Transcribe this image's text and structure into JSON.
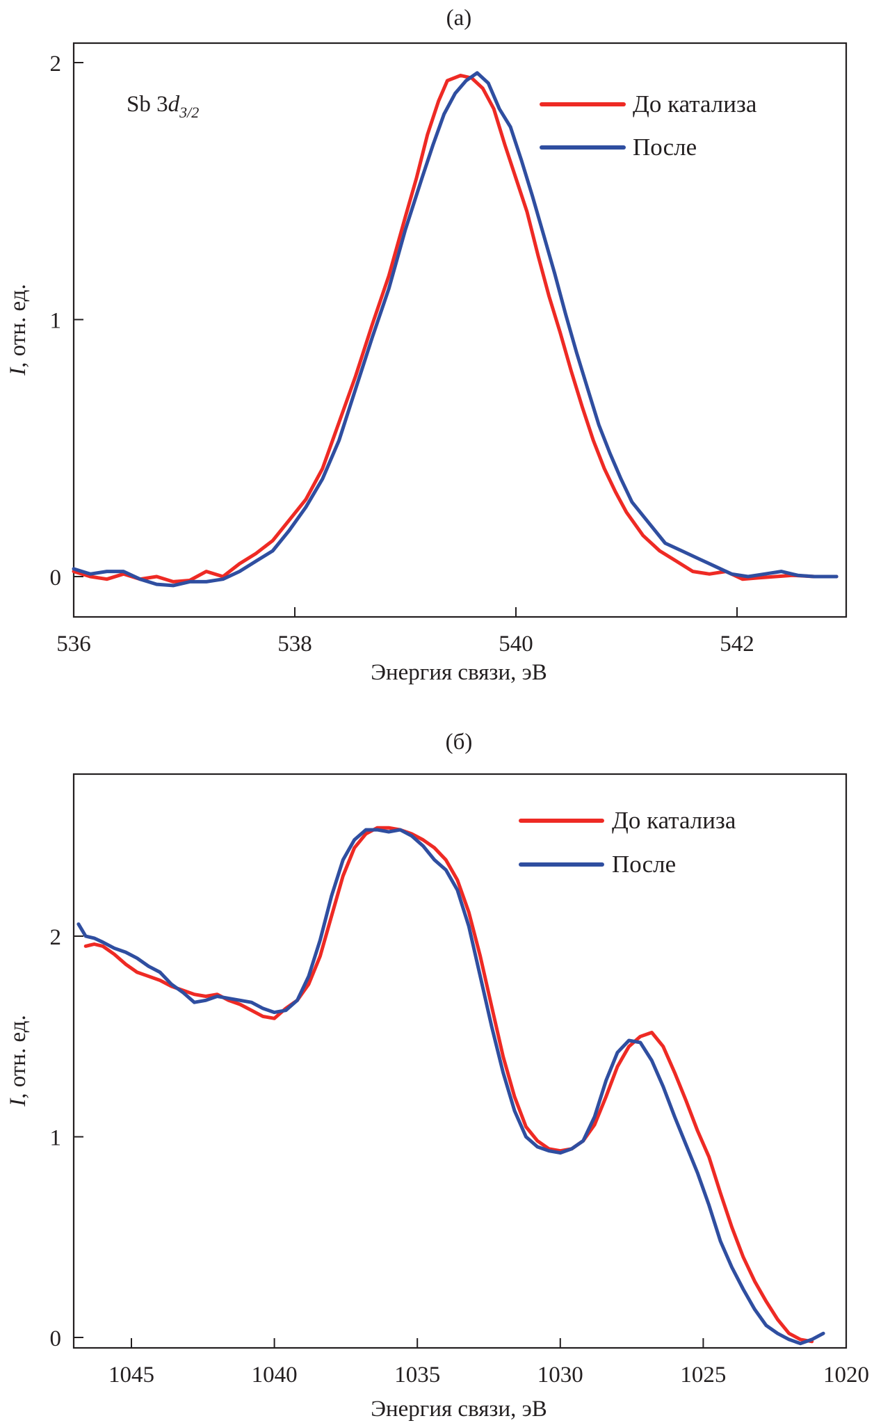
{
  "chart_data": [
    {
      "type": "line",
      "panel_label": "(а)",
      "title": "(а)",
      "annotation": {
        "main": "Sb 3",
        "italic": "d",
        "subscript": "3/2"
      },
      "xlabel": "Энергия связи, эВ",
      "ylabel": {
        "italic": "I",
        "rest": ", отн. ед."
      },
      "xlim": [
        536,
        543
      ],
      "ylim": [
        -0.15,
        2.1
      ],
      "x_ticks": [
        536,
        538,
        540,
        542
      ],
      "x_tick_labels": [
        "536",
        "538",
        "540",
        "542"
      ],
      "y_ticks": [
        0,
        1,
        2
      ],
      "y_tick_labels": [
        "0",
        "1",
        "2"
      ],
      "grid": false,
      "legend_position": "top-right",
      "series": [
        {
          "name": "До катализа",
          "color": "#ee2a24",
          "x": [
            536.0,
            536.15,
            536.3,
            536.45,
            536.6,
            536.75,
            536.9,
            537.05,
            537.2,
            537.35,
            537.5,
            537.65,
            537.8,
            537.95,
            538.1,
            538.25,
            538.4,
            538.55,
            538.7,
            538.85,
            539.0,
            539.1,
            539.2,
            539.3,
            539.38,
            539.5,
            539.6,
            539.7,
            539.8,
            539.9,
            540.0,
            540.1,
            540.2,
            540.3,
            540.4,
            540.5,
            540.6,
            540.7,
            540.8,
            540.9,
            541.0,
            541.15,
            541.3,
            541.45,
            541.6,
            541.75,
            541.9,
            542.05,
            542.2,
            542.35,
            542.5,
            542.7,
            542.9
          ],
          "y": [
            0.02,
            0.0,
            -0.01,
            0.01,
            -0.01,
            0.0,
            -0.02,
            -0.015,
            0.02,
            0.0,
            0.05,
            0.09,
            0.14,
            0.22,
            0.3,
            0.42,
            0.6,
            0.78,
            0.98,
            1.17,
            1.4,
            1.55,
            1.72,
            1.85,
            1.93,
            1.95,
            1.94,
            1.9,
            1.82,
            1.68,
            1.55,
            1.42,
            1.25,
            1.09,
            0.95,
            0.8,
            0.66,
            0.53,
            0.42,
            0.33,
            0.25,
            0.16,
            0.1,
            0.06,
            0.02,
            0.01,
            0.02,
            -0.01,
            -0.005,
            0.0,
            0.005,
            0.0,
            0.0
          ]
        },
        {
          "name": "После",
          "color": "#2f4ea0",
          "x": [
            536.0,
            536.15,
            536.3,
            536.45,
            536.6,
            536.75,
            536.9,
            537.05,
            537.2,
            537.35,
            537.5,
            537.65,
            537.8,
            537.95,
            538.1,
            538.25,
            538.4,
            538.55,
            538.7,
            538.85,
            539.0,
            539.15,
            539.25,
            539.35,
            539.45,
            539.55,
            539.65,
            539.75,
            539.85,
            539.95,
            540.05,
            540.15,
            540.25,
            540.35,
            540.45,
            540.55,
            540.65,
            540.75,
            540.85,
            540.95,
            541.05,
            541.2,
            541.35,
            541.5,
            541.65,
            541.8,
            541.95,
            542.1,
            542.25,
            542.4,
            542.55,
            542.7,
            542.9
          ],
          "y": [
            0.03,
            0.01,
            0.02,
            0.02,
            -0.01,
            -0.03,
            -0.035,
            -0.02,
            -0.02,
            -0.01,
            0.02,
            0.06,
            0.1,
            0.18,
            0.27,
            0.38,
            0.53,
            0.73,
            0.93,
            1.12,
            1.35,
            1.55,
            1.68,
            1.8,
            1.88,
            1.93,
            1.96,
            1.92,
            1.82,
            1.75,
            1.62,
            1.48,
            1.33,
            1.18,
            1.02,
            0.87,
            0.73,
            0.59,
            0.48,
            0.38,
            0.29,
            0.21,
            0.13,
            0.1,
            0.07,
            0.04,
            0.01,
            0.0,
            0.01,
            0.02,
            0.005,
            0.0,
            0.0
          ]
        }
      ]
    },
    {
      "type": "line",
      "panel_label": "(б)",
      "title": "(б)",
      "xlabel": "Энергия связи, эВ",
      "ylabel": {
        "italic": "I",
        "rest": ", отн. ед."
      },
      "xlim": [
        1047,
        1020
      ],
      "x_reversed": true,
      "ylim": [
        -0.05,
        2.81
      ],
      "x_ticks": [
        1045,
        1040,
        1035,
        1030,
        1025,
        1020
      ],
      "x_tick_labels": [
        "1045",
        "1040",
        "1035",
        "1030",
        "1025",
        "1020"
      ],
      "y_ticks": [
        0,
        1,
        2
      ],
      "y_tick_labels": [
        "0",
        "1",
        "2"
      ],
      "grid": false,
      "legend_position": "top-right",
      "series": [
        {
          "name": "До катализа",
          "color": "#ee2a24",
          "x": [
            1046.6,
            1046.3,
            1046.0,
            1045.6,
            1045.2,
            1044.8,
            1044.4,
            1044.0,
            1043.6,
            1043.2,
            1042.8,
            1042.4,
            1042.0,
            1041.6,
            1041.2,
            1040.8,
            1040.4,
            1040.0,
            1039.6,
            1039.2,
            1038.8,
            1038.4,
            1038.0,
            1037.6,
            1037.2,
            1036.8,
            1036.4,
            1036.0,
            1035.6,
            1035.2,
            1034.8,
            1034.4,
            1034.0,
            1033.6,
            1033.2,
            1032.8,
            1032.4,
            1032.0,
            1031.6,
            1031.2,
            1030.8,
            1030.4,
            1030.0,
            1029.6,
            1029.2,
            1028.8,
            1028.4,
            1028.0,
            1027.6,
            1027.2,
            1026.8,
            1026.4,
            1026.0,
            1025.6,
            1025.2,
            1024.8,
            1024.4,
            1024.0,
            1023.6,
            1023.2,
            1022.8,
            1022.4,
            1022.0,
            1021.6,
            1021.2
          ],
          "y": [
            1.95,
            1.96,
            1.95,
            1.91,
            1.86,
            1.82,
            1.8,
            1.78,
            1.75,
            1.73,
            1.71,
            1.7,
            1.71,
            1.68,
            1.66,
            1.63,
            1.6,
            1.59,
            1.64,
            1.68,
            1.76,
            1.9,
            2.1,
            2.3,
            2.44,
            2.51,
            2.54,
            2.54,
            2.53,
            2.51,
            2.48,
            2.44,
            2.38,
            2.28,
            2.12,
            1.9,
            1.65,
            1.4,
            1.2,
            1.05,
            0.98,
            0.94,
            0.93,
            0.94,
            0.98,
            1.06,
            1.2,
            1.35,
            1.45,
            1.5,
            1.52,
            1.45,
            1.32,
            1.18,
            1.03,
            0.9,
            0.72,
            0.55,
            0.4,
            0.28,
            0.18,
            0.09,
            0.02,
            -0.01,
            -0.02
          ]
        },
        {
          "name": "После",
          "color": "#2f4ea0",
          "x": [
            1046.85,
            1046.6,
            1046.3,
            1046.0,
            1045.6,
            1045.2,
            1044.8,
            1044.4,
            1044.0,
            1043.6,
            1043.2,
            1042.8,
            1042.4,
            1042.0,
            1041.6,
            1041.2,
            1040.8,
            1040.4,
            1040.0,
            1039.6,
            1039.2,
            1038.8,
            1038.4,
            1038.0,
            1037.6,
            1037.2,
            1036.8,
            1036.4,
            1036.0,
            1035.6,
            1035.2,
            1034.8,
            1034.4,
            1034.0,
            1033.6,
            1033.2,
            1032.8,
            1032.4,
            1032.0,
            1031.6,
            1031.2,
            1030.8,
            1030.4,
            1030.0,
            1029.6,
            1029.2,
            1028.8,
            1028.4,
            1028.0,
            1027.6,
            1027.2,
            1026.8,
            1026.4,
            1026.0,
            1025.6,
            1025.2,
            1024.8,
            1024.4,
            1024.0,
            1023.6,
            1023.2,
            1022.8,
            1022.4,
            1022.0,
            1021.6,
            1021.2,
            1020.8
          ],
          "y": [
            2.06,
            2.0,
            1.99,
            1.97,
            1.94,
            1.92,
            1.89,
            1.85,
            1.82,
            1.76,
            1.72,
            1.67,
            1.68,
            1.7,
            1.69,
            1.68,
            1.67,
            1.64,
            1.62,
            1.63,
            1.68,
            1.8,
            1.98,
            2.2,
            2.38,
            2.48,
            2.53,
            2.53,
            2.52,
            2.53,
            2.5,
            2.45,
            2.38,
            2.33,
            2.23,
            2.05,
            1.8,
            1.55,
            1.32,
            1.13,
            1.0,
            0.95,
            0.93,
            0.92,
            0.94,
            0.98,
            1.1,
            1.28,
            1.42,
            1.48,
            1.47,
            1.38,
            1.25,
            1.1,
            0.96,
            0.82,
            0.66,
            0.48,
            0.35,
            0.24,
            0.14,
            0.06,
            0.02,
            -0.01,
            -0.03,
            -0.01,
            0.02
          ]
        }
      ]
    }
  ]
}
